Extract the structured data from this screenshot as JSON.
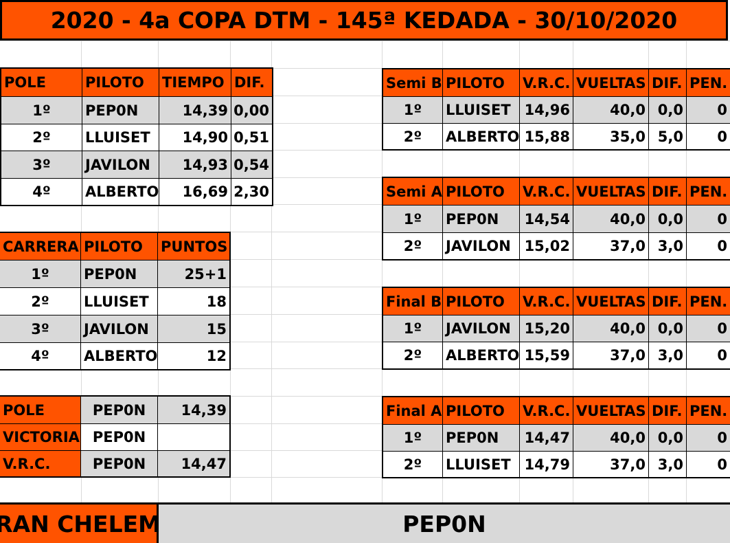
{
  "title": "2020 - 4a COPA DTM - 145ª KEDADA - 30/10/2020",
  "pole_table": {
    "headers": [
      "POLE",
      "PILOTO",
      "TIEMPO",
      "DIF."
    ],
    "rows": [
      [
        "1º",
        "PEP0N",
        "14,39",
        "0,00"
      ],
      [
        "2º",
        "LLUISET",
        "14,90",
        "0,51"
      ],
      [
        "3º",
        "JAVILON",
        "14,93",
        "0,54"
      ],
      [
        "4º",
        "ALBERTO",
        "16,69",
        "2,30"
      ]
    ]
  },
  "carrera_table": {
    "headers": [
      "CARRERA",
      "PILOTO",
      "PUNTOS"
    ],
    "rows": [
      [
        "1º",
        "PEP0N",
        "25+1"
      ],
      [
        "2º",
        "LLUISET",
        "18"
      ],
      [
        "3º",
        "JAVILON",
        "15"
      ],
      [
        "4º",
        "ALBERTO",
        "12"
      ]
    ]
  },
  "summary_table": {
    "rows": [
      [
        "POLE",
        "PEP0N",
        "14,39"
      ],
      [
        "VICTORIA",
        "PEP0N",
        ""
      ],
      [
        "V.R.C.",
        "PEP0N",
        "14,47"
      ]
    ]
  },
  "semi_b": {
    "headers": [
      "Semi B",
      "PILOTO",
      "V.R.C.",
      "VUELTAS",
      "DIF.",
      "PEN."
    ],
    "rows": [
      [
        "1º",
        "LLUISET",
        "14,96",
        "40,0",
        "0,0",
        "0"
      ],
      [
        "2º",
        "ALBERTO",
        "15,88",
        "35,0",
        "5,0",
        "0"
      ]
    ]
  },
  "semi_a": {
    "headers": [
      "Semi A",
      "PILOTO",
      "V.R.C.",
      "VUELTAS",
      "DIF.",
      "PEN."
    ],
    "rows": [
      [
        "1º",
        "PEP0N",
        "14,54",
        "40,0",
        "0,0",
        "0"
      ],
      [
        "2º",
        "JAVILON",
        "15,02",
        "37,0",
        "3,0",
        "0"
      ]
    ]
  },
  "final_b": {
    "headers": [
      "Final B",
      "PILOTO",
      "V.R.C.",
      "VUELTAS",
      "DIF.",
      "PEN."
    ],
    "rows": [
      [
        "1º",
        "JAVILON",
        "15,20",
        "40,0",
        "0,0",
        "0"
      ],
      [
        "2º",
        "ALBERTO",
        "15,59",
        "37,0",
        "3,0",
        "0"
      ]
    ]
  },
  "final_a": {
    "headers": [
      "Final A",
      "PILOTO",
      "V.R.C.",
      "VUELTAS",
      "DIF.",
      "PEN."
    ],
    "rows": [
      [
        "1º",
        "PEP0N",
        "14,47",
        "40,0",
        "0,0",
        "0"
      ],
      [
        "2º",
        "LLUISET",
        "14,79",
        "37,0",
        "3,0",
        "0"
      ]
    ]
  },
  "gran_chelem": {
    "label": "GRAN CHELEM",
    "winner": "PEP0N"
  },
  "colors": {
    "header_orange": "#ff5300",
    "row_gray": "#d9d9d9",
    "grid_line": "#d9d9d9"
  }
}
